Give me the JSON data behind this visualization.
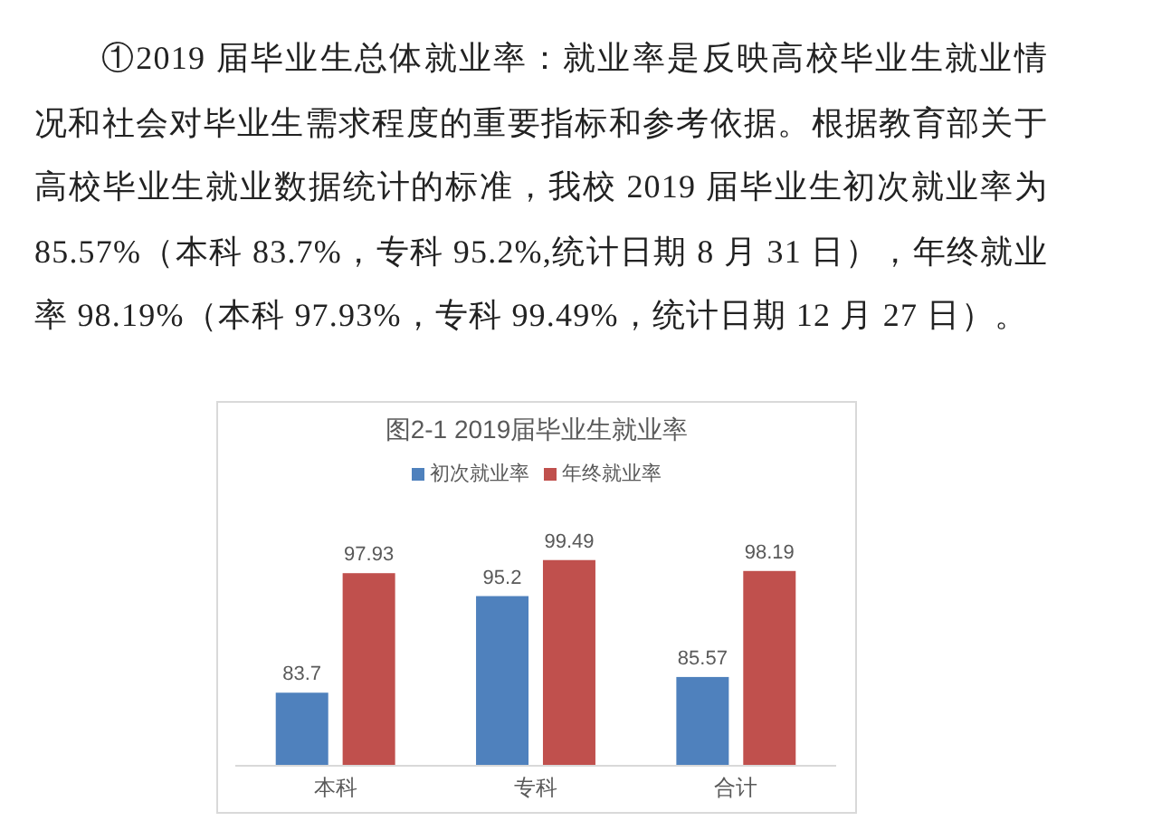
{
  "chart_data": {
    "type": "bar",
    "title": "图2-1 2019届毕业生就业率",
    "categories": [
      "本科",
      "专科",
      "合计"
    ],
    "series": [
      {
        "name": "初次就业率",
        "color": "#4f81bd",
        "values": [
          83.7,
          95.2,
          85.57
        ]
      },
      {
        "name": "年终就业率",
        "color": "#c0504d",
        "values": [
          97.93,
          99.49,
          98.19
        ]
      }
    ],
    "ylim": [
      75,
      100
    ],
    "tick_labels": "x",
    "data_labels": true,
    "legend": "top",
    "annotations": [
      "①2019 届毕业生总体就业率：就业率是反映高校毕业生就业情况和社会对毕业生需求程度的重要指标和参考依据。根据教育部关于高校毕业生就业数据统计的标准，我校 2019 届毕业生初次就业率为 85.57%（本科 83.7%，专科 95.2%,统计日期 8 月 31 日），年终就业率 98.19%（本科 97.93%，专科 99.49%，统计日期 12 月 27 日）。"
    ]
  }
}
